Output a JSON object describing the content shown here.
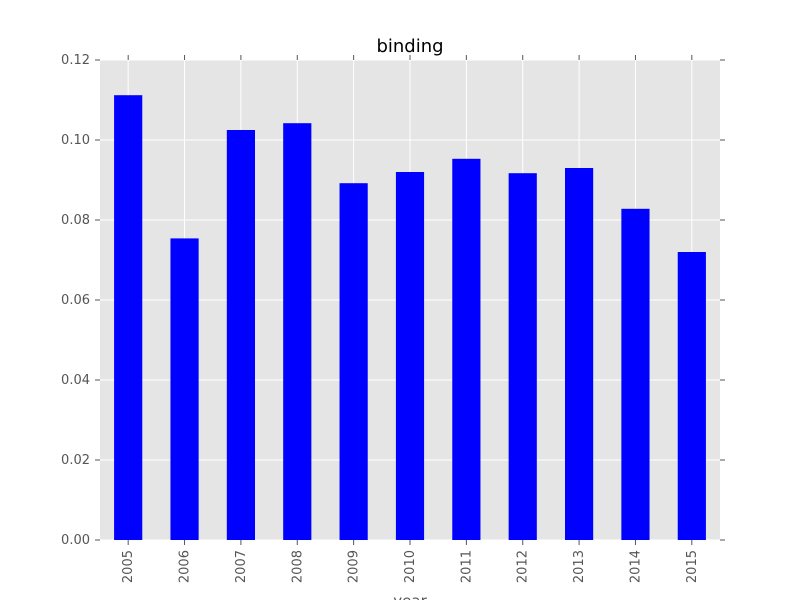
{
  "chart_data": {
    "type": "bar",
    "title": "binding",
    "xlabel": "year",
    "ylabel": "",
    "categories": [
      "2005",
      "2006",
      "2007",
      "2008",
      "2009",
      "2010",
      "2011",
      "2012",
      "2013",
      "2014",
      "2015"
    ],
    "values": [
      0.1112,
      0.0754,
      0.1025,
      0.1042,
      0.0892,
      0.092,
      0.0953,
      0.0917,
      0.093,
      0.0828,
      0.072
    ],
    "ylim": [
      0,
      0.12
    ],
    "yticks": [
      "0.00",
      "0.02",
      "0.04",
      "0.06",
      "0.08",
      "0.10",
      "0.12"
    ],
    "bar_color": "#0000ff",
    "plot_background": "#e5e5e5",
    "grid_color": "#ffffff",
    "grid": true,
    "legend": "none"
  }
}
